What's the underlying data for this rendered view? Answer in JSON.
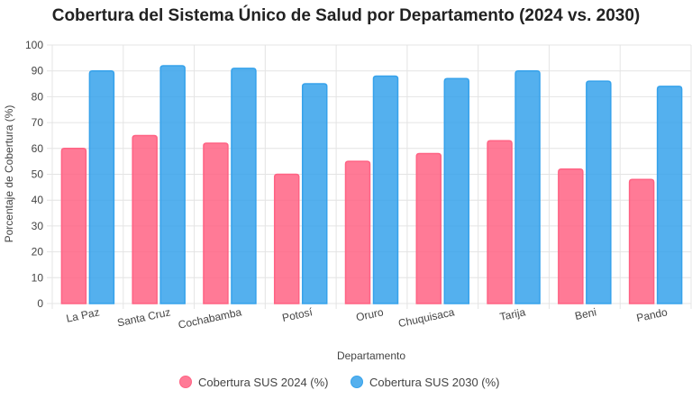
{
  "chart_data": {
    "type": "bar",
    "title": "Cobertura del Sistema Único de Salud por Departamento (2024 vs. 2030)",
    "xlabel": "Departamento",
    "ylabel": "Porcentaje de Cobertura (%)",
    "ylim": [
      0,
      100
    ],
    "yticks": [
      "0",
      "10",
      "20",
      "30",
      "40",
      "50",
      "60",
      "70",
      "80",
      "90",
      "100"
    ],
    "categories": [
      "La Paz",
      "Santa Cruz",
      "Cochabamba",
      "Potosí",
      "Oruro",
      "Chuquisaca",
      "Tarija",
      "Beni",
      "Pando"
    ],
    "series": [
      {
        "name": "Cobertura SUS 2024 (%)",
        "color": "#ff6384",
        "values": [
          60,
          65,
          62,
          50,
          55,
          58,
          63,
          52,
          48
        ]
      },
      {
        "name": "Cobertura SUS 2030 (%)",
        "color": "#36a2eb",
        "values": [
          90,
          92,
          91,
          85,
          88,
          87,
          90,
          86,
          84
        ]
      }
    ],
    "grid": true,
    "legend_position": "bottom"
  }
}
